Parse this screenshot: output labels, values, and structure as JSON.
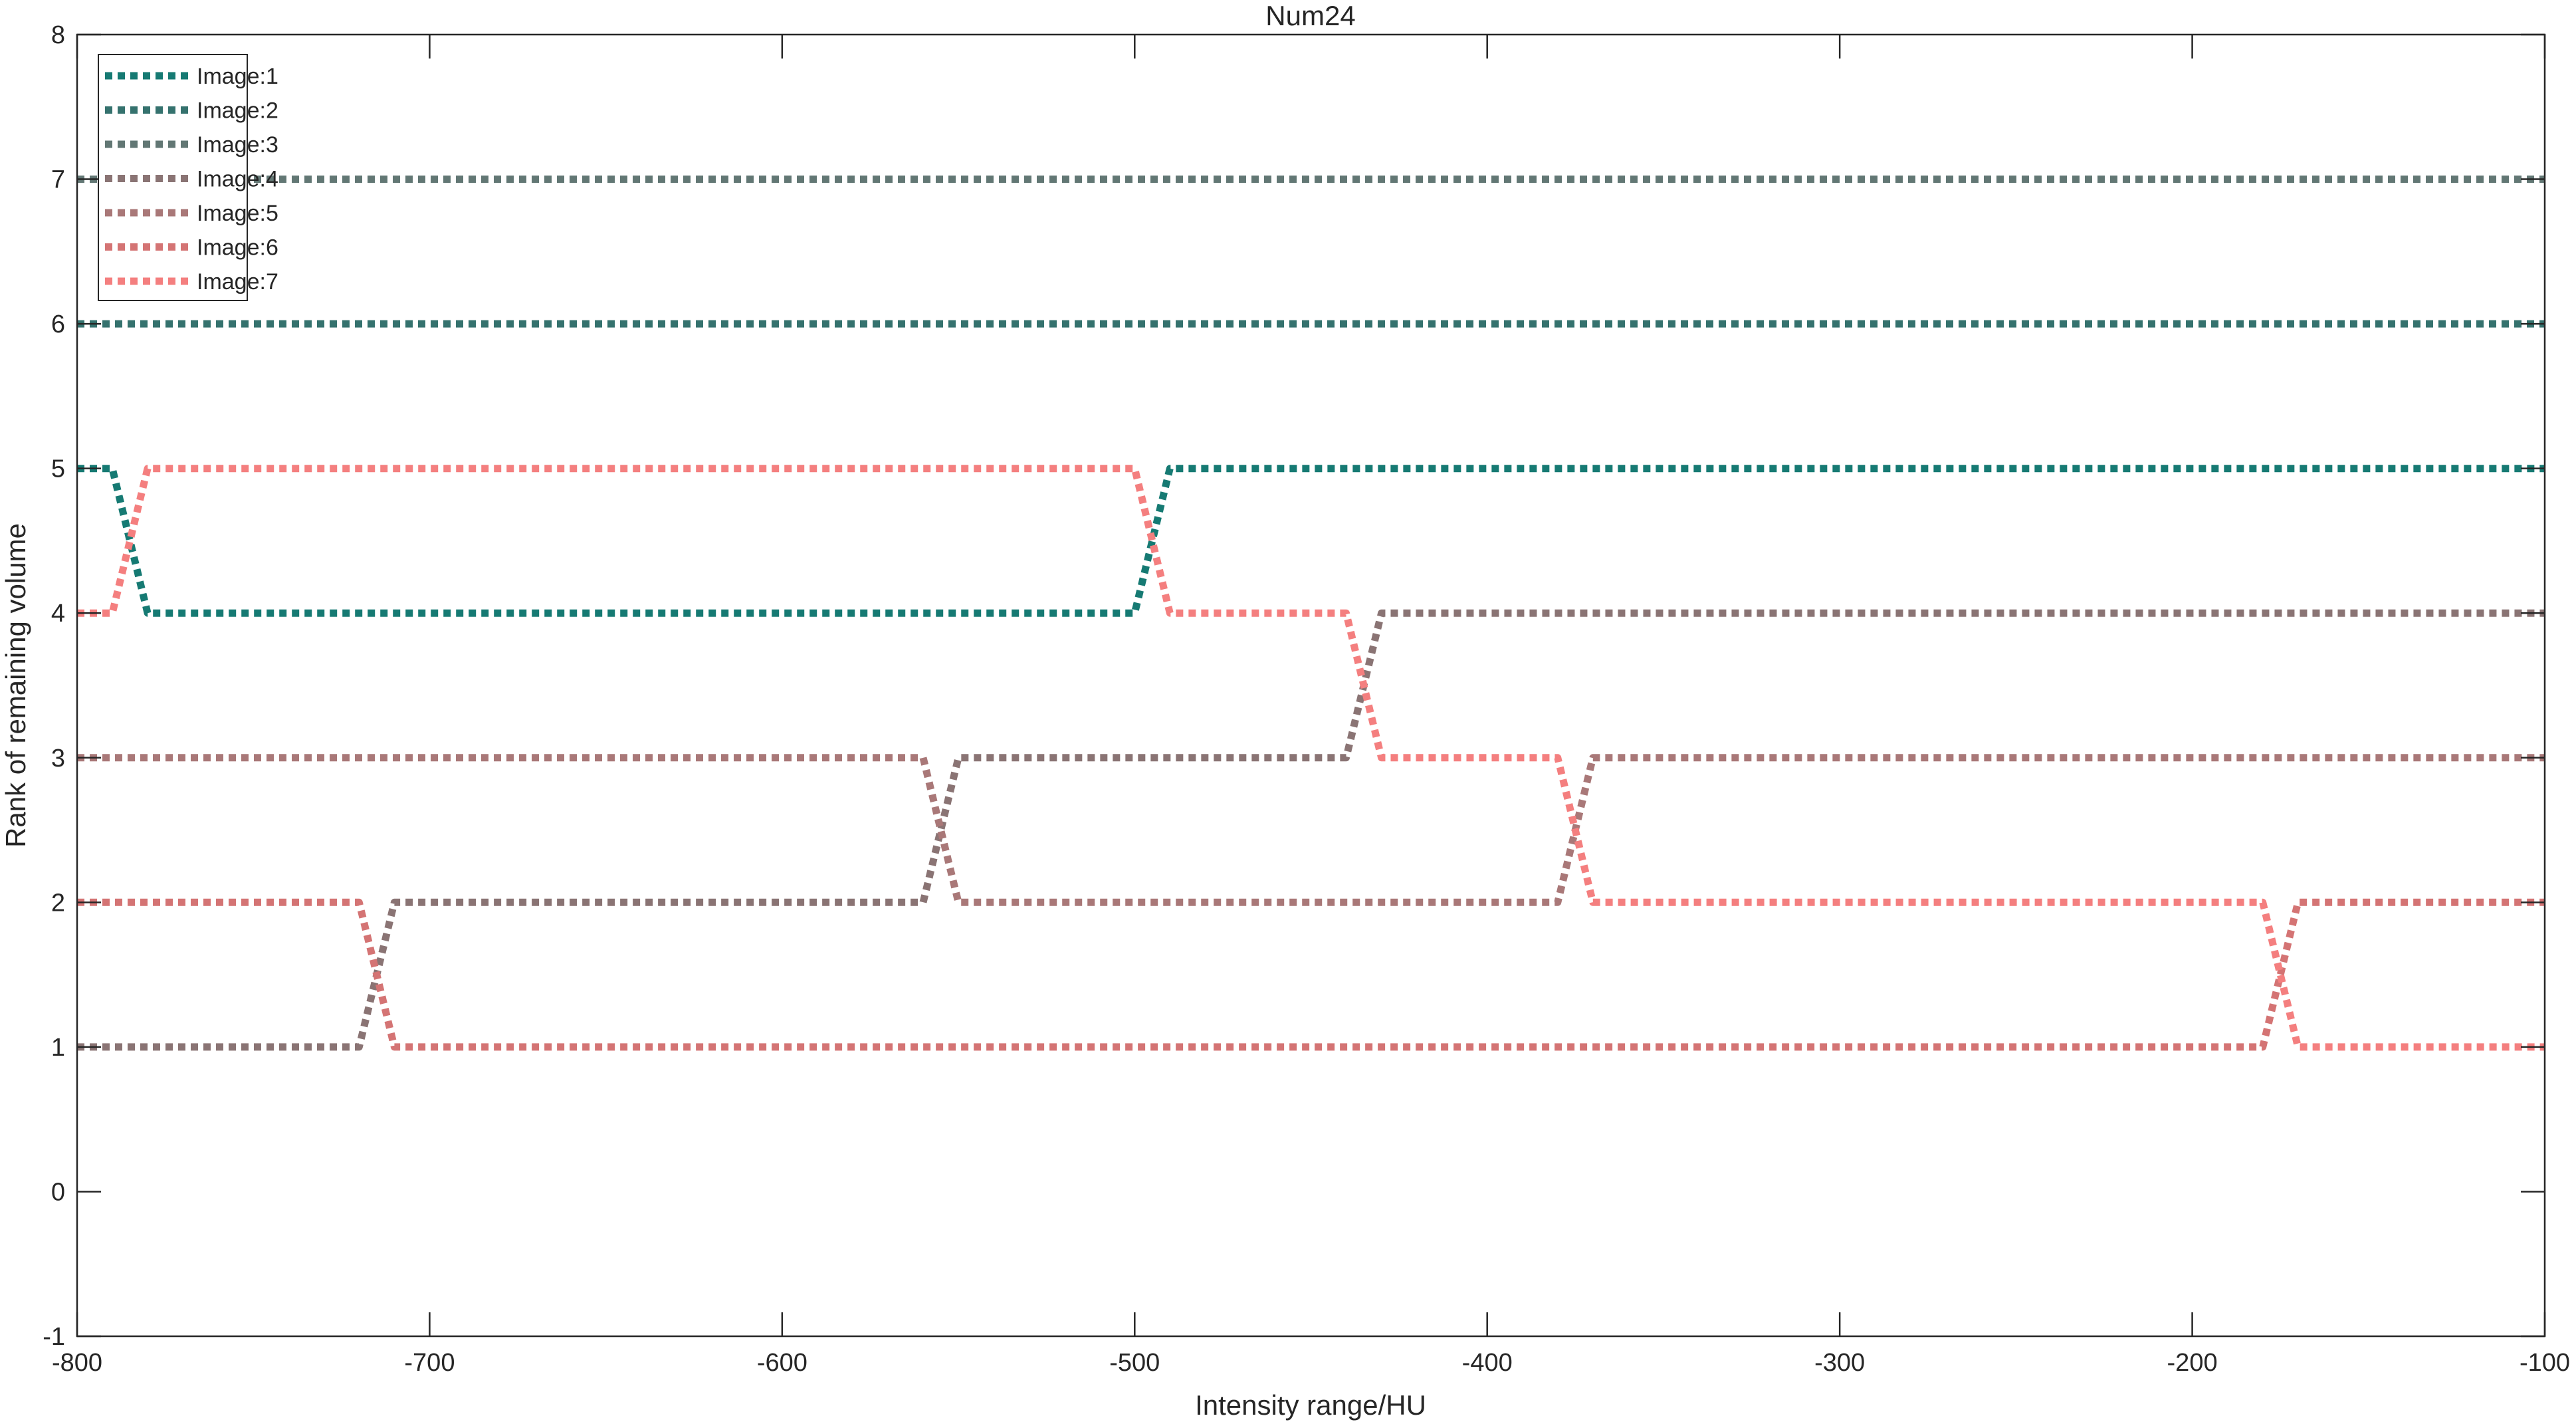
{
  "chart_data": {
    "type": "line",
    "title": "Num24",
    "xlabel": "Intensity range/HU",
    "ylabel": "Rank of remaining volume",
    "xlim": [
      -800,
      -100
    ],
    "ylim": [
      -1,
      8
    ],
    "xticks": [
      -800,
      -700,
      -600,
      -500,
      -400,
      -300,
      -200,
      -100
    ],
    "yticks": [
      -1,
      0,
      1,
      2,
      3,
      4,
      5,
      6,
      7,
      8
    ],
    "grid": false,
    "legend_position": "top-left",
    "line_style": "dotted",
    "series": [
      {
        "name": "Image:1",
        "color": "#167a73",
        "x": [
          -800,
          -790,
          -780,
          -500,
          -490,
          -100
        ],
        "y": [
          5,
          5,
          4,
          4,
          5,
          5
        ]
      },
      {
        "name": "Image:2",
        "color": "#35726e",
        "x": [
          -800,
          -100
        ],
        "y": [
          6,
          6
        ]
      },
      {
        "name": "Image:3",
        "color": "#627774",
        "x": [
          -800,
          -100
        ],
        "y": [
          7,
          7
        ]
      },
      {
        "name": "Image:4",
        "color": "#8a7474",
        "x": [
          -800,
          -720,
          -710,
          -560,
          -550,
          -440,
          -430,
          -100
        ],
        "y": [
          1,
          1,
          2,
          2,
          3,
          3,
          4,
          4
        ]
      },
      {
        "name": "Image:5",
        "color": "#a97878",
        "x": [
          -800,
          -560,
          -550,
          -380,
          -370,
          -100
        ],
        "y": [
          3,
          3,
          2,
          2,
          3,
          3
        ]
      },
      {
        "name": "Image:6",
        "color": "#d47474",
        "x": [
          -800,
          -720,
          -710,
          -180,
          -170,
          -100
        ],
        "y": [
          2,
          2,
          1,
          1,
          2,
          2
        ]
      },
      {
        "name": "Image:7",
        "color": "#f47f7f",
        "x": [
          -800,
          -790,
          -780,
          -500,
          -490,
          -440,
          -430,
          -380,
          -370,
          -180,
          -170,
          -100
        ],
        "y": [
          4,
          4,
          5,
          5,
          4,
          4,
          3,
          3,
          2,
          2,
          1,
          1
        ]
      }
    ]
  }
}
